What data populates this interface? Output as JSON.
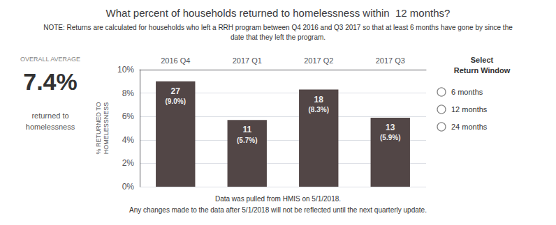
{
  "chart_data": {
    "type": "bar",
    "title": "What percent of households returned to homelessness within  12 months?",
    "note": [
      "NOTE: Returns are calculated for households who left a RRH program between Q4 2016 and Q3 2017 so that at least 6 months have gone by since the",
      "date that they left the program."
    ],
    "summary": {
      "label": "OVERALL AVERAGE",
      "value": "7.4%",
      "text": "returned to\nhomelessness"
    },
    "selector": {
      "title": [
        "Select",
        "Return Window"
      ],
      "options": [
        "6 months",
        "12 months",
        "24 months"
      ]
    },
    "categories": [
      "2016 Q4",
      "2017 Q1",
      "2017 Q2",
      "2017 Q3"
    ],
    "values": [
      9.0,
      5.7,
      8.3,
      5.9
    ],
    "value_labels": [
      "(9.0%)",
      "(5.7%)",
      "(8.3%)",
      "(5.9%)"
    ],
    "counts": [
      27,
      11,
      18,
      13
    ],
    "data_labels": true,
    "color": "#524646",
    "ylabel": "% RETURNED TO\nHOMELESSNESS",
    "ylim": [
      0,
      10
    ],
    "yticks": [
      {
        "value": 0,
        "label": "0%"
      },
      {
        "value": 2,
        "label": "2%"
      },
      {
        "value": 4,
        "label": "4%"
      },
      {
        "value": 6,
        "label": "6%"
      },
      {
        "value": 8,
        "label": "8%"
      },
      {
        "value": 10,
        "label": "10%"
      }
    ],
    "grid": true,
    "footer": [
      "Data was pulled from HMIS on 5/1/2018.",
      "Any changes made to the data after 5/1/2018 will not be reflected until the next quarterly update."
    ]
  }
}
